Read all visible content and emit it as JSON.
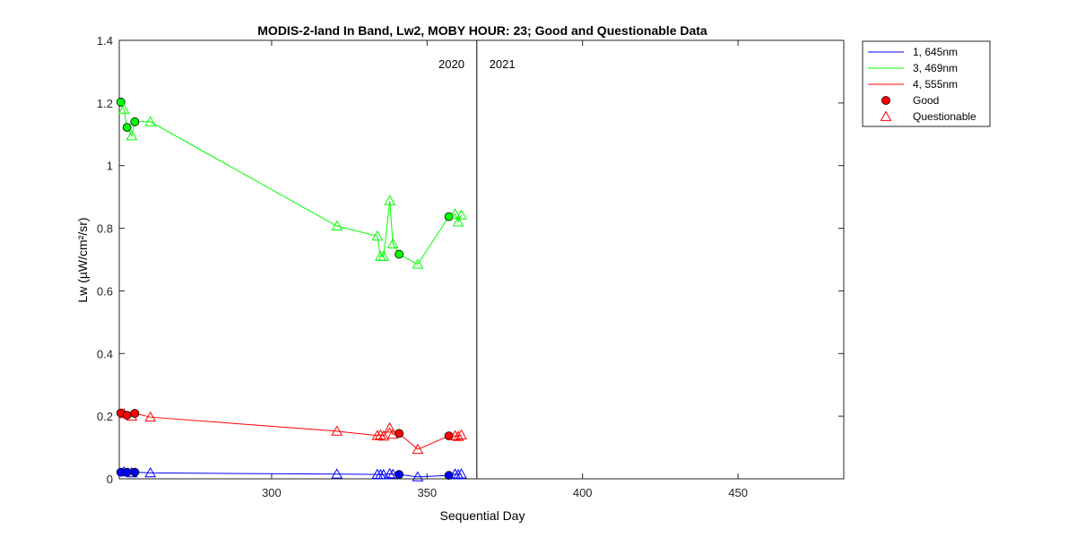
{
  "chart_data": {
    "type": "line",
    "title": "MODIS-2-land In Band,  Lw2, MOBY HOUR: 23;  Good and Questionable Data",
    "xlabel": "Sequential Day",
    "ylabel": "Lw (µW/cm²/sr)",
    "xlim": [
      251,
      484
    ],
    "ylim": [
      0,
      1.4
    ],
    "xticks": [
      300,
      350,
      400,
      450
    ],
    "xtick_labels": [
      "300",
      "350",
      "400",
      "450"
    ],
    "yticks": [
      0,
      0.2,
      0.4,
      0.6,
      0.8,
      1,
      1.2,
      1.4
    ],
    "ytick_labels": [
      "0",
      "0.2",
      "0.4",
      "0.6",
      "0.8",
      "1",
      "1.2",
      "1.4"
    ],
    "year_divider_x": 366,
    "year_labels": [
      {
        "text": "2020",
        "x": 362,
        "align": "end"
      },
      {
        "text": "2021",
        "x": 370,
        "align": "start"
      }
    ],
    "series": [
      {
        "name": "1, 645nm",
        "color": "#0000ff",
        "points": [
          {
            "x": 251.5,
            "y": 0.021,
            "q": "good"
          },
          {
            "x": 252.5,
            "y": 0.022,
            "q": "questionable"
          },
          {
            "x": 253.5,
            "y": 0.021,
            "q": "good"
          },
          {
            "x": 255.0,
            "y": 0.019,
            "q": "questionable"
          },
          {
            "x": 256.0,
            "y": 0.021,
            "q": "good"
          },
          {
            "x": 261.0,
            "y": 0.019,
            "q": "questionable"
          },
          {
            "x": 321.0,
            "y": 0.015,
            "q": "questionable"
          },
          {
            "x": 334.0,
            "y": 0.014,
            "q": "questionable"
          },
          {
            "x": 335.0,
            "y": 0.013,
            "q": "questionable"
          },
          {
            "x": 336.0,
            "y": 0.013,
            "q": "questionable"
          },
          {
            "x": 338.0,
            "y": 0.016,
            "q": "questionable"
          },
          {
            "x": 339.0,
            "y": 0.014,
            "q": "questionable"
          },
          {
            "x": 341.0,
            "y": 0.014,
            "q": "good"
          },
          {
            "x": 347.0,
            "y": 0.006,
            "q": "questionable"
          },
          {
            "x": 357.0,
            "y": 0.011,
            "q": "good"
          },
          {
            "x": 359.0,
            "y": 0.015,
            "q": "questionable"
          },
          {
            "x": 360.0,
            "y": 0.013,
            "q": "questionable"
          },
          {
            "x": 361.0,
            "y": 0.015,
            "q": "questionable"
          }
        ]
      },
      {
        "name": "3, 469nm",
        "color": "#00ff00",
        "points": [
          {
            "x": 251.5,
            "y": 1.203,
            "q": "good"
          },
          {
            "x": 252.5,
            "y": 1.18,
            "q": "questionable"
          },
          {
            "x": 253.5,
            "y": 1.122,
            "q": "good"
          },
          {
            "x": 255.0,
            "y": 1.095,
            "q": "questionable"
          },
          {
            "x": 256.0,
            "y": 1.14,
            "q": "good"
          },
          {
            "x": 261.0,
            "y": 1.14,
            "q": "questionable"
          },
          {
            "x": 321.0,
            "y": 0.807,
            "q": "questionable"
          },
          {
            "x": 334.0,
            "y": 0.775,
            "q": "questionable"
          },
          {
            "x": 335.0,
            "y": 0.71,
            "q": "questionable"
          },
          {
            "x": 336.0,
            "y": 0.71,
            "q": "questionable"
          },
          {
            "x": 338.0,
            "y": 0.888,
            "q": "questionable"
          },
          {
            "x": 339.0,
            "y": 0.75,
            "q": "questionable"
          },
          {
            "x": 341.0,
            "y": 0.717,
            "q": "good"
          },
          {
            "x": 347.0,
            "y": 0.685,
            "q": "questionable"
          },
          {
            "x": 357.0,
            "y": 0.837,
            "q": "good"
          },
          {
            "x": 359.0,
            "y": 0.845,
            "q": "questionable"
          },
          {
            "x": 360.0,
            "y": 0.82,
            "q": "questionable"
          },
          {
            "x": 361.0,
            "y": 0.842,
            "q": "questionable"
          }
        ]
      },
      {
        "name": "4, 555nm",
        "color": "#ff0000",
        "points": [
          {
            "x": 251.5,
            "y": 0.21,
            "q": "good"
          },
          {
            "x": 252.5,
            "y": 0.208,
            "q": "questionable"
          },
          {
            "x": 253.5,
            "y": 0.203,
            "q": "good"
          },
          {
            "x": 255.0,
            "y": 0.2,
            "q": "questionable"
          },
          {
            "x": 256.0,
            "y": 0.209,
            "q": "good"
          },
          {
            "x": 261.0,
            "y": 0.197,
            "q": "questionable"
          },
          {
            "x": 321.0,
            "y": 0.152,
            "q": "questionable"
          },
          {
            "x": 334.0,
            "y": 0.138,
            "q": "questionable"
          },
          {
            "x": 335.0,
            "y": 0.14,
            "q": "questionable"
          },
          {
            "x": 336.0,
            "y": 0.136,
            "q": "questionable"
          },
          {
            "x": 338.0,
            "y": 0.162,
            "q": "questionable"
          },
          {
            "x": 339.0,
            "y": 0.142,
            "q": "questionable"
          },
          {
            "x": 341.0,
            "y": 0.145,
            "q": "good"
          },
          {
            "x": 347.0,
            "y": 0.094,
            "q": "questionable"
          },
          {
            "x": 357.0,
            "y": 0.137,
            "q": "good"
          },
          {
            "x": 359.0,
            "y": 0.137,
            "q": "questionable"
          },
          {
            "x": 360.0,
            "y": 0.135,
            "q": "questionable"
          },
          {
            "x": 361.0,
            "y": 0.14,
            "q": "questionable"
          }
        ]
      }
    ],
    "legend": {
      "placement": "outside-top-right",
      "entries": [
        {
          "label": "1, 645nm",
          "kind": "line",
          "color": "#0000ff"
        },
        {
          "label": "3, 469nm",
          "kind": "line",
          "color": "#00ff00"
        },
        {
          "label": "4, 555nm",
          "kind": "line",
          "color": "#ff0000"
        },
        {
          "label": "Good",
          "kind": "filled-circle",
          "color": "#ff0000"
        },
        {
          "label": "Questionable",
          "kind": "open-triangle",
          "color": "#ff0000"
        }
      ]
    },
    "grid": false
  }
}
